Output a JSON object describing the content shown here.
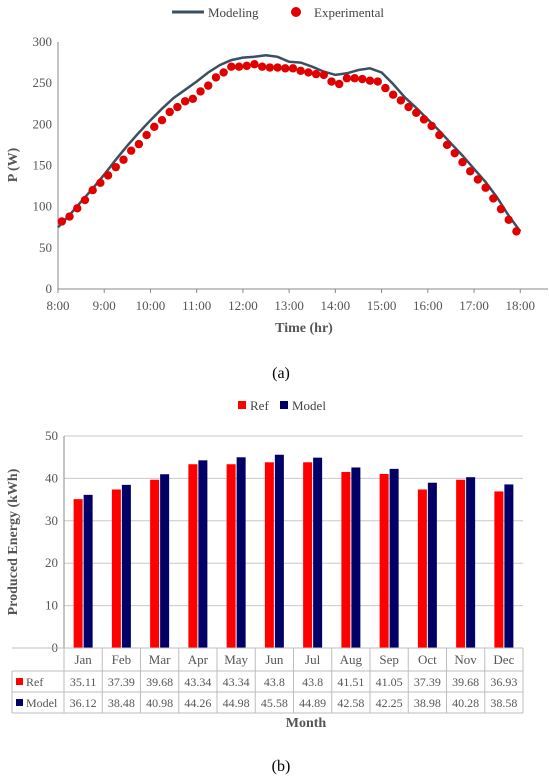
{
  "chart_data": [
    {
      "type": "line",
      "panel_label": "(a)",
      "xlabel": "Time (hr)",
      "ylabel": "P (W)",
      "xlim": [
        8,
        18.6
      ],
      "ylim": [
        0,
        300
      ],
      "x_ticks": [
        "8:00",
        "9:00",
        "10:00",
        "11:00",
        "12:00",
        "13:00",
        "14:00",
        "15:00",
        "16:00",
        "17:00",
        "18:00"
      ],
      "y_ticks": [
        0,
        50,
        100,
        150,
        200,
        250,
        300
      ],
      "grid": false,
      "legend_position": "top",
      "colors": {
        "modeling": "#3b4f63",
        "experimental": "#e00000"
      },
      "series": [
        {
          "name": "Modeling",
          "style": "line",
          "x": [
            8.0,
            8.25,
            8.5,
            8.75,
            9.0,
            9.25,
            9.5,
            9.75,
            10.0,
            10.25,
            10.5,
            10.75,
            11.0,
            11.25,
            11.5,
            11.75,
            12.0,
            12.25,
            12.5,
            12.75,
            13.0,
            13.25,
            13.5,
            13.75,
            14.0,
            14.25,
            14.5,
            14.75,
            15.0,
            15.25,
            15.5,
            15.75,
            16.0,
            16.25,
            16.5,
            16.75,
            17.0,
            17.25,
            17.5,
            17.75,
            18.0
          ],
          "y": [
            75,
            90,
            106,
            122,
            139,
            157,
            174,
            190,
            205,
            219,
            232,
            242,
            252,
            263,
            272,
            278,
            281,
            282,
            284,
            282,
            276,
            275,
            270,
            264,
            260,
            262,
            266,
            268,
            263,
            249,
            233,
            220,
            206,
            192,
            177,
            162,
            146,
            130,
            111,
            89,
            70
          ]
        },
        {
          "name": "Experimental",
          "style": "markers",
          "x": [
            8.083,
            8.25,
            8.417,
            8.583,
            8.75,
            8.917,
            9.083,
            9.25,
            9.417,
            9.583,
            9.75,
            9.917,
            10.083,
            10.25,
            10.417,
            10.583,
            10.75,
            10.917,
            11.083,
            11.25,
            11.417,
            11.583,
            11.75,
            11.917,
            12.083,
            12.25,
            12.417,
            12.583,
            12.75,
            12.917,
            13.083,
            13.25,
            13.417,
            13.583,
            13.75,
            13.917,
            14.083,
            14.25,
            14.417,
            14.583,
            14.75,
            14.917,
            15.083,
            15.25,
            15.417,
            15.583,
            15.75,
            15.917,
            16.083,
            16.25,
            16.417,
            16.583,
            16.75,
            16.917,
            17.083,
            17.25,
            17.417,
            17.583,
            17.75,
            17.917
          ],
          "y": [
            82,
            88,
            98,
            108,
            120,
            129,
            138,
            148,
            157,
            168,
            176,
            187,
            197,
            205,
            215,
            221,
            228,
            231,
            240,
            247,
            257,
            263,
            270,
            270,
            271,
            273,
            270,
            269,
            269,
            268,
            268,
            265,
            263,
            261,
            260,
            252,
            249,
            256,
            256,
            255,
            253,
            252,
            244,
            236,
            229,
            221,
            214,
            206,
            198,
            187,
            175,
            165,
            154,
            143,
            133,
            123,
            110,
            97,
            84,
            70
          ]
        }
      ]
    },
    {
      "type": "bar",
      "panel_label": "(b)",
      "xlabel": "Month",
      "ylabel": "Produced Energy (kWh)",
      "ylim": [
        0,
        50
      ],
      "y_ticks": [
        0,
        10,
        20,
        30,
        40,
        50
      ],
      "grid": true,
      "legend_position": "top",
      "colors": {
        "ref": "#ff0000",
        "model": "#000066"
      },
      "categories": [
        "Jan",
        "Feb",
        "Mar",
        "Apr",
        "May",
        "Jun",
        "Jul",
        "Aug",
        "Sep",
        "Oct",
        "Nov",
        "Dec"
      ],
      "series": [
        {
          "name": "Ref",
          "values": [
            "35.11",
            "37.39",
            "39.68",
            "43.34",
            "43.34",
            "43.8",
            "43.8",
            "41.51",
            "41.05",
            "37.39",
            "39.68",
            "36.93"
          ]
        },
        {
          "name": "Model",
          "values": [
            "36.12",
            "38.48",
            "40.98",
            "44.26",
            "44.98",
            "45.58",
            "44.89",
            "42.58",
            "42.25",
            "38.98",
            "40.28",
            "38.58"
          ]
        }
      ]
    }
  ]
}
